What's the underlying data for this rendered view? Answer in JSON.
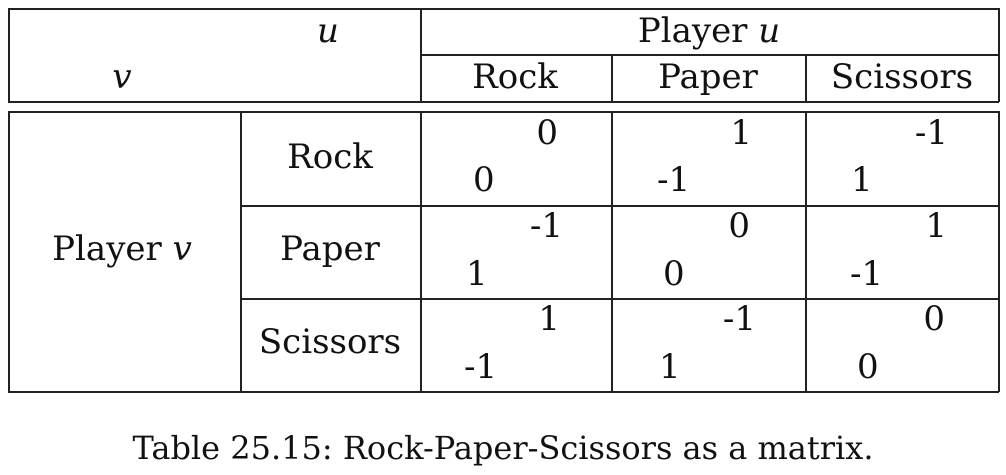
{
  "table": {
    "corner_u": "u",
    "corner_v": "v",
    "col_group_prefix": "Player ",
    "col_group_var": "u",
    "row_group_prefix": "Player ",
    "row_group_var": "v",
    "columns": [
      "Rock",
      "Paper",
      "Scissors"
    ],
    "rows": [
      {
        "label": "Rock",
        "cells": [
          {
            "top": "0",
            "bottom": "0"
          },
          {
            "top": "1",
            "bottom": "-1"
          },
          {
            "top": "-1",
            "bottom": "1"
          }
        ]
      },
      {
        "label": "Paper",
        "cells": [
          {
            "top": "-1",
            "bottom": "1"
          },
          {
            "top": "0",
            "bottom": "0"
          },
          {
            "top": "1",
            "bottom": "-1"
          }
        ]
      },
      {
        "label": "Scissors",
        "cells": [
          {
            "top": "1",
            "bottom": "-1"
          },
          {
            "top": "-1",
            "bottom": "1"
          },
          {
            "top": "0",
            "bottom": "0"
          }
        ]
      }
    ]
  },
  "caption": "Table 25.15: Rock-Paper-Scissors as a matrix."
}
